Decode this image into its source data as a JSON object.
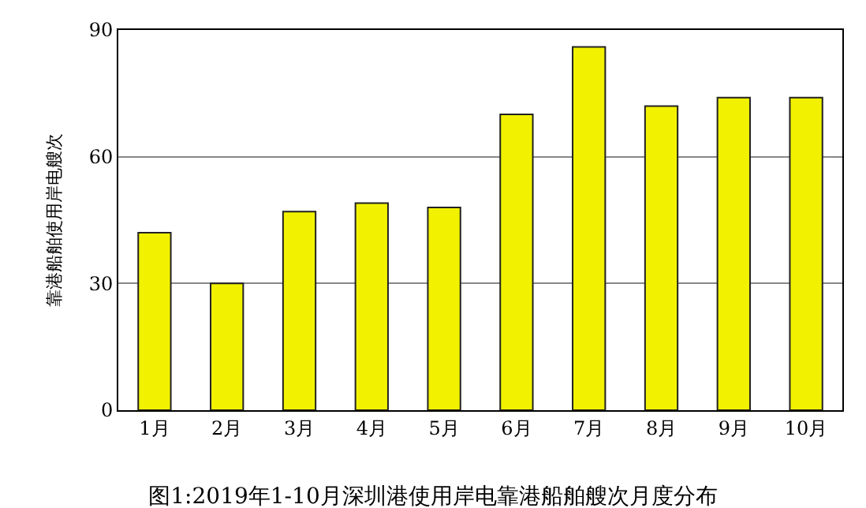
{
  "chart_data": {
    "type": "bar",
    "title": "图1:2019年1-10月深圳港使用岸电靠港船舶艘次月度分布",
    "ylabel": "靠港船舶使用岸电艘次",
    "categories": [
      "1月",
      "2月",
      "3月",
      "4月",
      "5月",
      "6月",
      "7月",
      "8月",
      "9月",
      "10月"
    ],
    "values": [
      42,
      30,
      47,
      49,
      48,
      70,
      86,
      72,
      74,
      74
    ],
    "color": "#f2f200",
    "ylim": [
      0,
      90
    ],
    "yticks": [
      0,
      30,
      60,
      90
    ],
    "grid": "y"
  }
}
